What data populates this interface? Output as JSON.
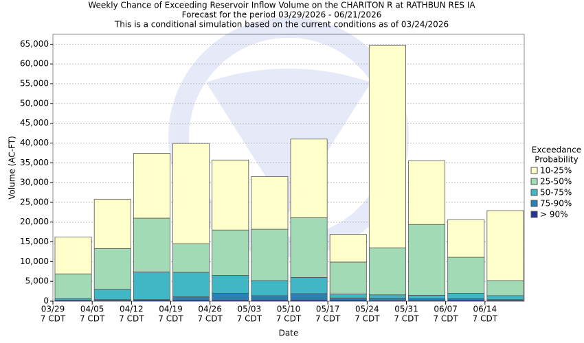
{
  "chart_data": {
    "type": "stacked_bar",
    "title": [
      "Weekly Chance of Exceeding Reservoir Inflow Volume on the CHARITON R at RATHBUN RES IA",
      "Forecast for the period 03/29/2026 - 06/21/2026",
      "This is a conditional simulation based on the current conditions as of 03/24/2026"
    ],
    "x_label": "Date",
    "y_label": "Volume (AC-FT)",
    "legend_title": [
      "Exceedance",
      "Probability"
    ],
    "legend_position": "right",
    "categories": [
      [
        "03/29",
        "7 CDT"
      ],
      [
        "04/05",
        "7 CDT"
      ],
      [
        "04/12",
        "7 CDT"
      ],
      [
        "04/19",
        "7 CDT"
      ],
      [
        "04/26",
        "7 CDT"
      ],
      [
        "05/03",
        "7 CDT"
      ],
      [
        "05/10",
        "7 CDT"
      ],
      [
        "05/17",
        "7 CDT"
      ],
      [
        "05/24",
        "7 CDT"
      ],
      [
        "05/31",
        "7 CDT"
      ],
      [
        "06/07",
        "7 CDT"
      ],
      [
        "06/14",
        "7 CDT"
      ]
    ],
    "series": [
      {
        "name": "> 90%",
        "color": "#253494",
        "values": [
          200,
          200,
          300,
          300,
          300,
          300,
          300,
          300,
          200,
          200,
          300,
          200
        ]
      },
      {
        "name": "75-90%",
        "color": "#2c7fb8",
        "values": [
          100,
          200,
          100,
          800,
          1700,
          1100,
          1600,
          500,
          500,
          400,
          300,
          200
        ]
      },
      {
        "name": "50-75%",
        "color": "#41b6c4",
        "values": [
          300,
          2600,
          7000,
          6200,
          4500,
          3800,
          4100,
          1000,
          900,
          900,
          1400,
          1000
        ]
      },
      {
        "name": "25-50%",
        "color": "#a1dab4",
        "values": [
          6300,
          10300,
          13600,
          7200,
          11500,
          13000,
          15100,
          8100,
          11900,
          17900,
          9100,
          3800
        ]
      },
      {
        "name": "10-25%",
        "color": "#ffffcc",
        "values": [
          9300,
          12500,
          16400,
          25400,
          17700,
          13300,
          19900,
          7000,
          51200,
          16100,
          9500,
          17700
        ]
      }
    ],
    "ylim": [
      0,
      67500
    ],
    "yticks": [
      0,
      {
        "value": 5000,
        "label": "5,000"
      },
      {
        "value": 10000,
        "label": "10,000"
      },
      {
        "value": 15000,
        "label": "15,000"
      },
      {
        "value": 20000,
        "label": "20,000"
      },
      {
        "value": 25000,
        "label": "25,000"
      },
      {
        "value": 30000,
        "label": "30,000"
      },
      {
        "value": 35000,
        "label": "35,000"
      },
      {
        "value": 40000,
        "label": "40,000"
      },
      {
        "value": 45000,
        "label": "45,000"
      },
      {
        "value": 50000,
        "label": "50,000"
      },
      {
        "value": 55000,
        "label": "55,000"
      },
      {
        "value": 60000,
        "label": "60,000"
      },
      {
        "value": 65000,
        "label": "65,000"
      }
    ],
    "grid": true
  }
}
